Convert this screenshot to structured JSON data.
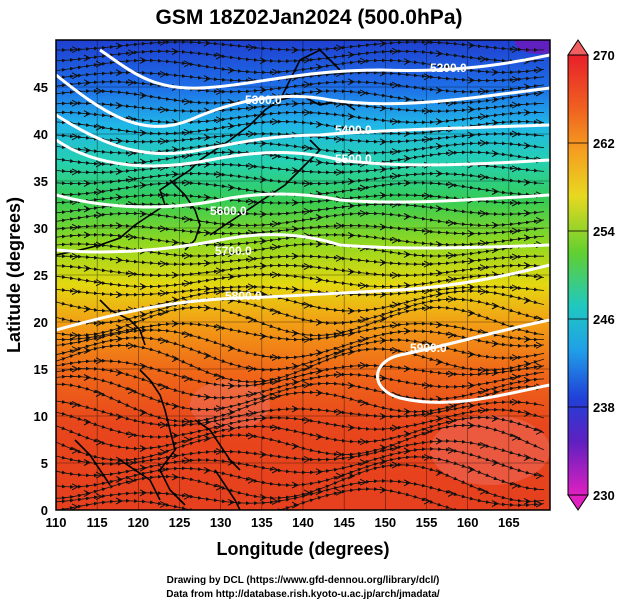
{
  "title": "GSM 18Z02Jan2024 (500.0hPa)",
  "xlabel": "Longitude (degrees)",
  "ylabel": "Latitude  (degrees)",
  "x_ticks": [
    "110",
    "115",
    "120",
    "125",
    "130",
    "135",
    "140",
    "145",
    "150",
    "155",
    "160",
    "165"
  ],
  "y_ticks": [
    "0",
    "5",
    "10",
    "15",
    "20",
    "25",
    "30",
    "35",
    "40",
    "45"
  ],
  "colorbar_ticks": [
    "270",
    "262",
    "254",
    "246",
    "238",
    "230"
  ],
  "contour_labels": [
    "5200.0",
    "5300.0",
    "5400.0",
    "5500.0",
    "5600.0",
    "5700.0",
    "5800.0",
    "5900.0"
  ],
  "credit_line1": "Drawing by DCL (https://www.gfd-dennou.org/library/dcl/)",
  "credit_line2": "Data from http://database.rish.kyoto-u.ac.jp/arch/jmadata/",
  "colors": {
    "contour": "#ffffff",
    "coast": "#000000",
    "streamline": "#111111",
    "colorbar_top": "#e8202a",
    "colorbar_bottom": "#e020c0"
  },
  "chart_data": {
    "type": "heatmap",
    "xlim": [
      110,
      170
    ],
    "ylim": [
      0,
      50
    ],
    "colorbar_range": [
      230,
      270
    ],
    "contour_levels": [
      5200,
      5300,
      5400,
      5500,
      5600,
      5700,
      5800,
      5900
    ]
  }
}
